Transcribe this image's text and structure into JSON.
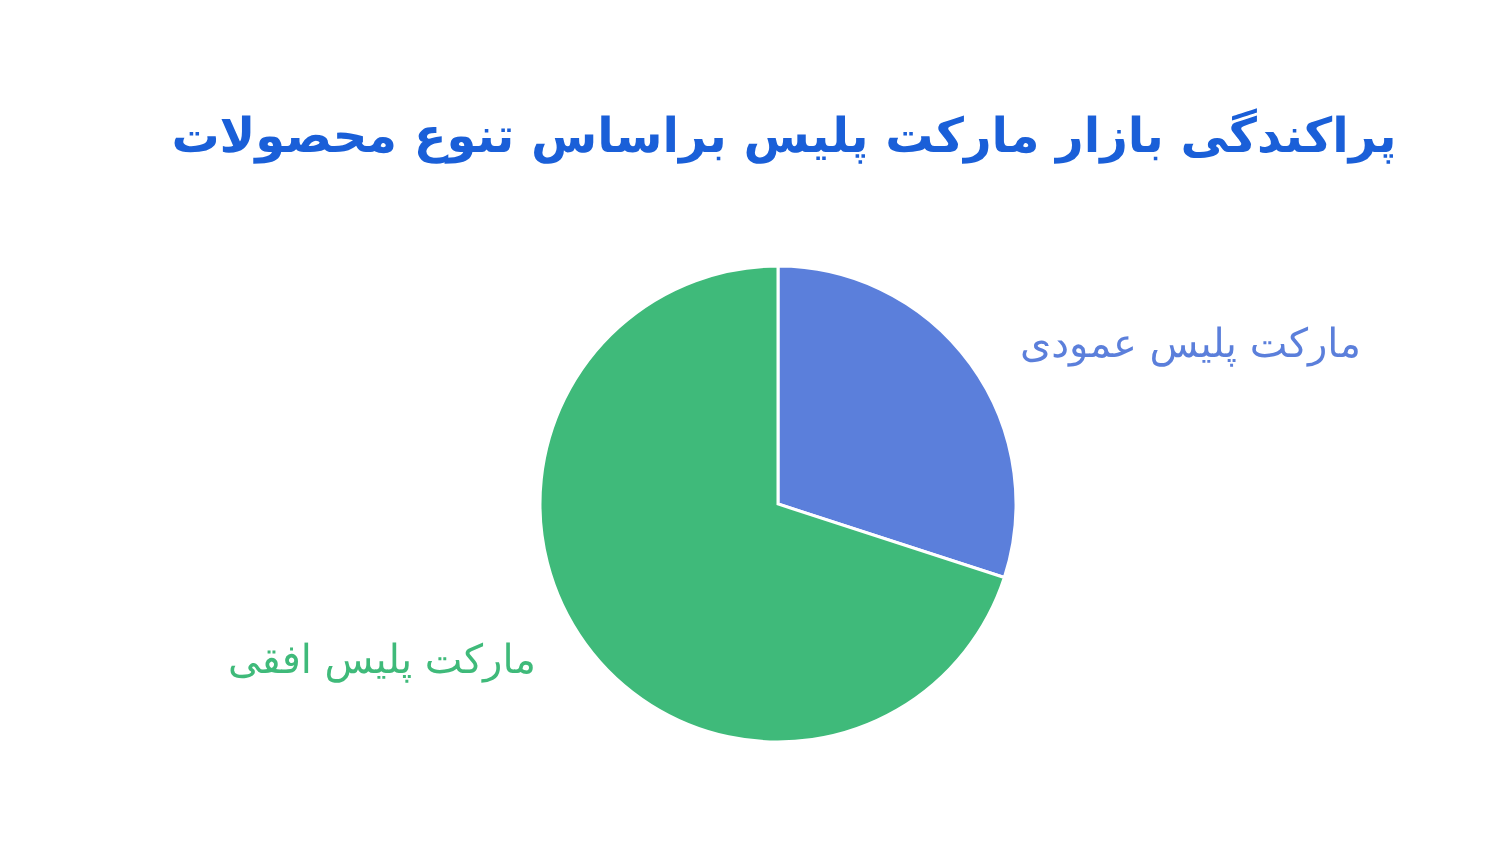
{
  "chart_data": {
    "type": "pie",
    "title": "پراکندگی بازار مارکت پلیس براساس تنوع محصولات",
    "categories": [
      "مارکت پلیس عمودی",
      "مارکت پلیس افقی"
    ],
    "values": [
      30,
      70
    ],
    "colors": [
      "#5b7fdb",
      "#3fba7a"
    ]
  }
}
